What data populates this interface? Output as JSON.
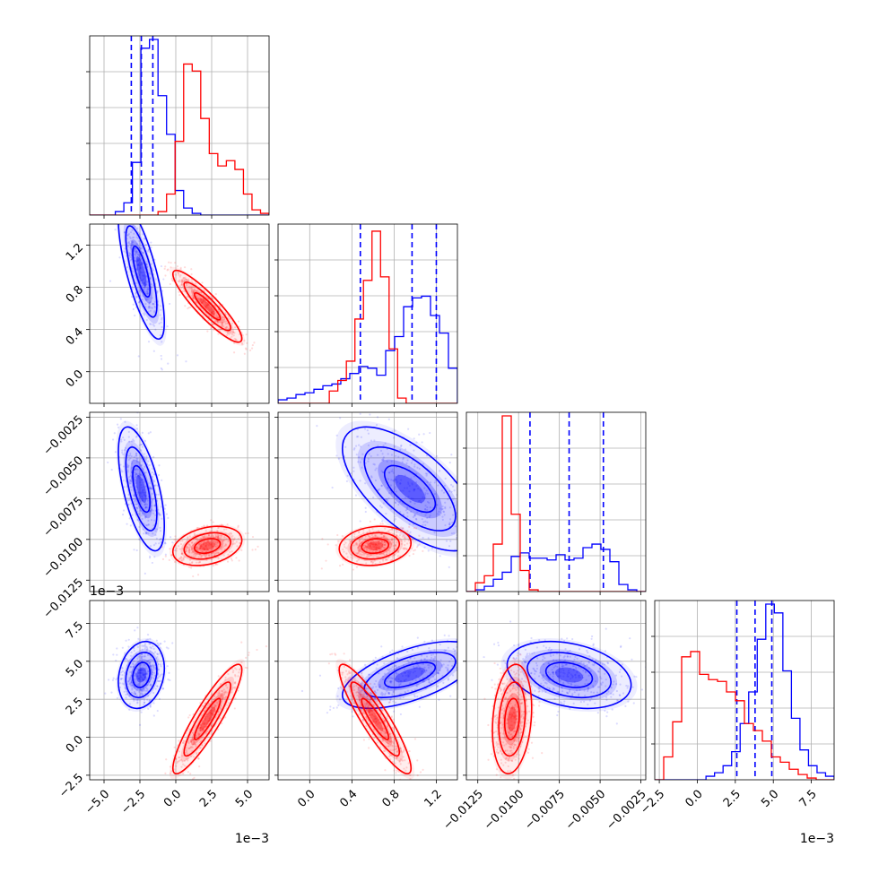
{
  "chart_data": {
    "type": "corner",
    "colors": {
      "series_a": "#0000ff",
      "series_b": "#ff0000",
      "grid": "#b0b0b0"
    },
    "params": [
      {
        "range": [
          -6.0,
          6.5
        ],
        "ticks": [
          -5.0,
          -2.5,
          0.0,
          2.5,
          5.0
        ],
        "labels": [
          "−5.0",
          "−2.5",
          "0.0",
          "2.5",
          "5.0"
        ],
        "offset": "1e−3"
      },
      {
        "range": [
          -0.3,
          1.4
        ],
        "ticks": [
          0.0,
          0.4,
          0.8,
          1.2
        ],
        "labels": [
          "0.0",
          "0.4",
          "0.8",
          "1.2"
        ],
        "offset": ""
      },
      {
        "range": [
          -0.0132,
          -0.0022
        ],
        "ticks": [
          -0.0125,
          -0.01,
          -0.0075,
          -0.005,
          -0.0025
        ],
        "labels": [
          "−0.0125",
          "−0.0100",
          "−0.0075",
          "−0.0050",
          "−0.0025"
        ],
        "offset": ""
      },
      {
        "range": [
          -2.8,
          9.0
        ],
        "ticks": [
          -2.5,
          0.0,
          2.5,
          5.0,
          7.5
        ],
        "labels": [
          "−2.5",
          "0.0",
          "2.5",
          "5.0",
          "7.5"
        ],
        "offset": "1e−3"
      }
    ],
    "series": [
      {
        "name": "",
        "color": "#0000ff",
        "hist": [
          [
            0,
            0,
            0,
            0.02,
            0.07,
            0.3,
            0.95,
            1.0,
            0.68,
            0.46,
            0.14,
            0.04,
            0.01,
            0,
            0,
            0,
            0,
            0,
            0,
            0,
            0
          ],
          [
            0.02,
            0.03,
            0.05,
            0.06,
            0.08,
            0.1,
            0.11,
            0.14,
            0.17,
            0.21,
            0.2,
            0.16,
            0.3,
            0.38,
            0.55,
            0.6,
            0.61,
            0.5,
            0.4,
            0.2
          ],
          [
            0,
            0.01,
            0.03,
            0.07,
            0.11,
            0.2,
            0.22,
            0.19,
            0.19,
            0.18,
            0.21,
            0.18,
            0.19,
            0.25,
            0.27,
            0.24,
            0.17,
            0.04,
            0.01,
            0
          ],
          [
            0,
            0,
            0,
            0,
            0,
            0,
            0.02,
            0.04,
            0.08,
            0.16,
            0.32,
            0.5,
            0.8,
            1.0,
            0.95,
            0.62,
            0.35,
            0.17,
            0.08,
            0.04,
            0.02
          ]
        ],
        "quantiles": [
          [
            -3.1,
            -2.4,
            -1.6
          ],
          [
            0.48,
            0.97,
            1.2
          ],
          [
            -0.0093,
            -0.0069,
            -0.0048
          ],
          [
            2.6,
            3.8,
            4.9
          ]
        ],
        "mean": [
          -2.4,
          0.95,
          -0.0069,
          4.1
        ],
        "sd": [
          0.8,
          0.32,
          0.0019,
          1.1
        ],
        "corr": [
          [
            1,
            -0.75,
            -0.6,
            0.2
          ],
          [
            -0.75,
            1,
            -0.65,
            0.6
          ],
          [
            -0.6,
            -0.65,
            1,
            -0.3
          ],
          [
            0.2,
            0.6,
            -0.3,
            1
          ]
        ]
      },
      {
        "name": "",
        "color": "#ff0000",
        "hist": [
          [
            0,
            0,
            0,
            0,
            0,
            0,
            0,
            0,
            0.02,
            0.12,
            0.42,
            0.86,
            0.82,
            0.55,
            0.35,
            0.28,
            0.31,
            0.26,
            0.12,
            0.03,
            0.01
          ],
          [
            0,
            0,
            0,
            0,
            0,
            0,
            0.07,
            0.13,
            0.24,
            0.48,
            0.7,
            0.98,
            0.72,
            0.31,
            0.03,
            0,
            0,
            0,
            0,
            0,
            0
          ],
          [
            0,
            0.05,
            0.09,
            0.27,
            1.0,
            0.44,
            0.12,
            0.01,
            0,
            0,
            0,
            0,
            0,
            0,
            0,
            0,
            0,
            0,
            0,
            0
          ],
          [
            0,
            0.13,
            0.33,
            0.7,
            0.73,
            0.6,
            0.57,
            0.56,
            0.5,
            0.45,
            0.32,
            0.28,
            0.22,
            0.13,
            0.1,
            0.06,
            0.03,
            0.01,
            0,
            0
          ]
        ],
        "quantiles": [],
        "mean": [
          2.2,
          0.62,
          -0.0104,
          1.2
        ],
        "sd": [
          1.2,
          0.17,
          0.0006,
          1.8
        ],
        "corr": [
          [
            1,
            -0.9,
            0.3,
            0.9
          ],
          [
            -0.9,
            1,
            0.15,
            -0.9
          ],
          [
            0.3,
            0.15,
            1,
            0.2
          ],
          [
            0.9,
            -0.9,
            0.2,
            1
          ]
        ]
      }
    ]
  }
}
